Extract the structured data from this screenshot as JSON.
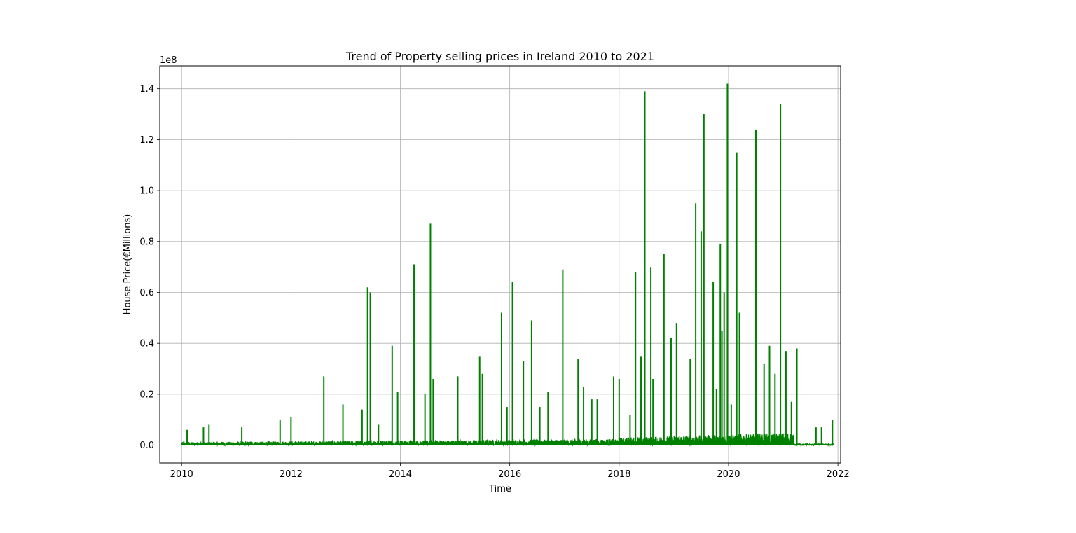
{
  "chart_data": {
    "type": "line",
    "title": "Trend of Property selling prices in Ireland 2010 to 2021",
    "xlabel": "Time",
    "ylabel": "House Price(€Millions)",
    "ylabel_color": "#008000",
    "line_color": "#008000",
    "y_offset_label": "1e8",
    "xlim": [
      2009.6,
      2022.05
    ],
    "ylim": [
      -0.07,
      1.49
    ],
    "x_ticks": [
      "2010",
      "2012",
      "2014",
      "2016",
      "2018",
      "2020",
      "2022"
    ],
    "y_ticks": [
      "0.0",
      "0.2",
      "0.4",
      "0.6",
      "0.8",
      "1.0",
      "1.2",
      "1.4"
    ],
    "grid": true,
    "series": [
      {
        "baseline_range": [
          0.0,
          0.03
        ],
        "x": [
          2010.1,
          2010.4,
          2010.5,
          2011.1,
          2011.8,
          2012.0,
          2012.6,
          2012.95,
          2013.3,
          2013.4,
          2013.45,
          2013.6,
          2013.85,
          2013.95,
          2014.25,
          2014.45,
          2014.55,
          2014.6,
          2015.05,
          2015.45,
          2015.5,
          2015.85,
          2015.95,
          2016.05,
          2016.25,
          2016.4,
          2016.55,
          2016.7,
          2016.97,
          2017.25,
          2017.35,
          2017.5,
          2017.6,
          2017.9,
          2018.0,
          2018.2,
          2018.3,
          2018.4,
          2018.47,
          2018.58,
          2018.62,
          2018.82,
          2018.95,
          2019.05,
          2019.3,
          2019.4,
          2019.5,
          2019.55,
          2019.72,
          2019.78,
          2019.85,
          2019.88,
          2019.92,
          2019.98,
          2020.05,
          2020.15,
          2020.2,
          2020.5,
          2020.65,
          2020.75,
          2020.85,
          2020.95,
          2021.05,
          2021.15,
          2021.25,
          2021.6,
          2021.7,
          2021.9
        ],
        "y": [
          0.06,
          0.07,
          0.08,
          0.07,
          0.1,
          0.11,
          0.27,
          0.16,
          0.14,
          0.62,
          0.6,
          0.08,
          0.39,
          0.21,
          0.71,
          0.2,
          0.87,
          0.26,
          0.27,
          0.35,
          0.28,
          0.52,
          0.15,
          0.64,
          0.33,
          0.49,
          0.15,
          0.21,
          0.69,
          0.34,
          0.23,
          0.18,
          0.18,
          0.27,
          0.26,
          0.12,
          0.68,
          0.35,
          1.39,
          0.7,
          0.26,
          0.75,
          0.42,
          0.48,
          0.34,
          0.95,
          0.84,
          1.3,
          0.64,
          0.22,
          0.79,
          0.45,
          0.6,
          1.42,
          0.16,
          1.15,
          0.52,
          1.24,
          0.32,
          0.39,
          0.28,
          1.34,
          0.37,
          0.17,
          0.38,
          0.07,
          0.07,
          0.1
        ]
      }
    ]
  }
}
